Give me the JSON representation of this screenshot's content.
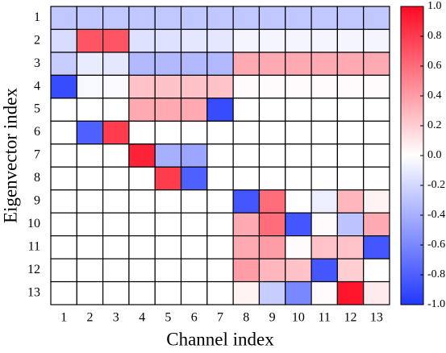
{
  "chart_data": {
    "type": "heatmap",
    "x_label": "Channel index",
    "y_label": "Eigenvector index",
    "x_categories": [
      "1",
      "2",
      "3",
      "4",
      "5",
      "6",
      "7",
      "8",
      "9",
      "10",
      "11",
      "12",
      "13"
    ],
    "y_categories": [
      "1",
      "2",
      "3",
      "4",
      "5",
      "6",
      "7",
      "8",
      "9",
      "10",
      "11",
      "12",
      "13"
    ],
    "values": [
      [
        -0.28,
        -0.28,
        -0.28,
        -0.28,
        -0.28,
        -0.28,
        -0.28,
        -0.28,
        -0.28,
        -0.28,
        -0.28,
        -0.28,
        -0.28
      ],
      [
        -0.18,
        0.7,
        0.7,
        -0.15,
        -0.15,
        -0.12,
        -0.12,
        -0.05,
        -0.05,
        -0.05,
        -0.05,
        -0.05,
        -0.05
      ],
      [
        -0.25,
        -0.1,
        -0.12,
        -0.35,
        -0.35,
        -0.35,
        -0.35,
        0.35,
        0.35,
        0.35,
        0.35,
        0.35,
        0.35
      ],
      [
        -0.9,
        -0.03,
        -0.02,
        0.25,
        0.25,
        0.25,
        0.25,
        0.02,
        0.02,
        0.02,
        0.02,
        0.02,
        0.02
      ],
      [
        0,
        0,
        0,
        0.35,
        0.35,
        0.35,
        -0.9,
        0,
        0,
        0,
        0,
        0,
        0
      ],
      [
        0,
        -0.8,
        0.8,
        0,
        0,
        0,
        0,
        0,
        0,
        0,
        0,
        0,
        0
      ],
      [
        0,
        0,
        0,
        0.9,
        -0.4,
        -0.45,
        0,
        0,
        0,
        0,
        0,
        0,
        0
      ],
      [
        0,
        0,
        0,
        0,
        0.8,
        -0.8,
        0,
        0,
        0,
        0,
        0,
        0,
        0
      ],
      [
        0,
        0,
        0,
        0,
        0,
        0,
        0,
        -0.85,
        0.6,
        0,
        -0.08,
        0.3,
        0.05
      ],
      [
        0,
        0,
        0,
        0,
        0,
        0,
        0,
        0.35,
        0.6,
        -0.85,
        0.02,
        -0.3,
        0.35
      ],
      [
        0,
        0,
        0,
        0,
        0,
        0,
        0,
        0.35,
        0.4,
        0.02,
        0.25,
        0.25,
        -0.85
      ],
      [
        0,
        0,
        0,
        0,
        0,
        0,
        0,
        0.4,
        0.3,
        0.25,
        -0.85,
        0.2,
        0
      ],
      [
        0,
        0,
        0,
        0,
        0,
        0,
        0,
        0.05,
        -0.25,
        -0.6,
        0.02,
        0.95,
        0.08
      ]
    ],
    "colormap": [
      "#2238ff",
      "#ffffff",
      "#ff0a22"
    ],
    "clim": [
      -1,
      1
    ],
    "cticks": [
      {
        "value": 1,
        "label": "1.0"
      },
      0.8,
      0.6,
      0.4,
      0.2,
      {
        "value": 0,
        "label": "0.0"
      },
      -0.2,
      -0.4,
      -0.6,
      -0.8,
      {
        "value": -1,
        "label": "-1.0"
      }
    ]
  }
}
